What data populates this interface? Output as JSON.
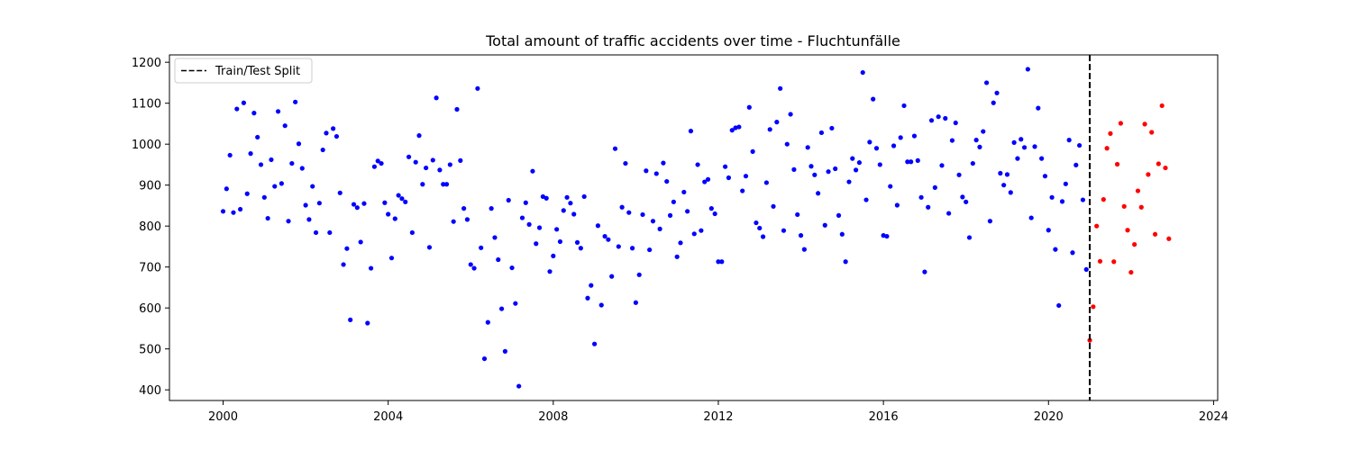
{
  "chart_data": {
    "type": "scatter",
    "title": "Total amount of traffic accidents over time - Fluchtunfälle",
    "xlabel": "",
    "ylabel": "",
    "xlim": [
      1998.7,
      2024.1
    ],
    "ylim": [
      374,
      1218
    ],
    "x_ticks": [
      2000,
      2004,
      2008,
      2012,
      2016,
      2020,
      2024
    ],
    "y_ticks": [
      400,
      500,
      600,
      700,
      800,
      900,
      1000,
      1100,
      1200
    ],
    "grid": false,
    "legend": {
      "position": "top-left",
      "entries": [
        "Train/Test Split"
      ]
    },
    "split_line": {
      "x": 2021.0,
      "label": "Train/Test Split",
      "color": "#000000",
      "style": "dashed"
    },
    "series": [
      {
        "color": "#0000ff",
        "x_start": 2000.0,
        "x_step": 0.0833333,
        "values": [
          836,
          891,
          973,
          833,
          1086,
          841,
          1101,
          879,
          977,
          1076,
          1017,
          950,
          870,
          819,
          962,
          897,
          1080,
          904,
          1045,
          812,
          953,
          1103,
          1001,
          941,
          851,
          816,
          897,
          784,
          856,
          986,
          1027,
          784,
          1038,
          1019,
          881,
          706,
          745,
          571,
          853,
          845,
          761,
          855,
          563,
          697,
          945,
          959,
          953,
          857,
          829,
          722,
          818,
          875,
          867,
          859,
          969,
          784,
          956,
          1021,
          902,
          942,
          748,
          961,
          1113,
          937,
          902,
          902,
          950,
          811,
          1085,
          960,
          843,
          816,
          706,
          697,
          1136,
          747,
          476,
          565,
          843,
          772,
          718,
          598,
          494,
          863,
          698,
          611,
          409,
          820,
          857,
          804,
          934,
          757,
          796,
          872,
          868,
          689,
          727,
          792,
          762,
          838,
          870,
          856,
          829,
          760,
          746,
          872,
          624,
          655,
          512,
          801,
          607,
          775,
          767,
          677,
          989,
          750,
          846,
          953,
          833,
          746,
          613,
          681,
          828,
          935,
          742,
          812,
          928,
          793,
          954,
          909,
          826,
          859,
          725,
          759,
          883,
          836,
          1032,
          781,
          950,
          789,
          908,
          914,
          843,
          830,
          713,
          713,
          945,
          918,
          1034,
          1040,
          1042,
          886,
          922,
          1090,
          982,
          808,
          795,
          774,
          906,
          1036,
          848,
          1054,
          1136,
          789,
          1000,
          1073,
          938,
          828,
          777,
          743,
          992,
          946,
          925,
          880,
          1028,
          802,
          933,
          1039,
          940,
          826,
          780,
          713,
          908,
          965,
          937,
          955,
          1175,
          864,
          1005,
          1110,
          990,
          950,
          777,
          775,
          897,
          996,
          851,
          1016,
          1094,
          957,
          957,
          1020,
          960,
          870,
          688,
          846,
          1058,
          894,
          1067,
          948,
          1063,
          831,
          1009,
          1052,
          925,
          871,
          859,
          772,
          953,
          1010,
          993,
          1031,
          1150,
          812,
          1101,
          1125,
          929,
          900,
          926,
          882,
          1004,
          965,
          1012,
          992,
          1183,
          820,
          994,
          1088,
          965,
          922,
          790,
          870,
          743,
          606,
          860,
          903,
          1010,
          735,
          949,
          997,
          864,
          694
        ]
      },
      {
        "color": "#ff0000",
        "x_start": 2021.0,
        "x_step": 0.0833333,
        "values": [
          521,
          603,
          800,
          714,
          865,
          990,
          1026,
          713,
          951,
          1051,
          848,
          790,
          687,
          755,
          886,
          846,
          1049,
          926,
          1029,
          780,
          952,
          1094,
          942,
          769
        ]
      }
    ]
  }
}
